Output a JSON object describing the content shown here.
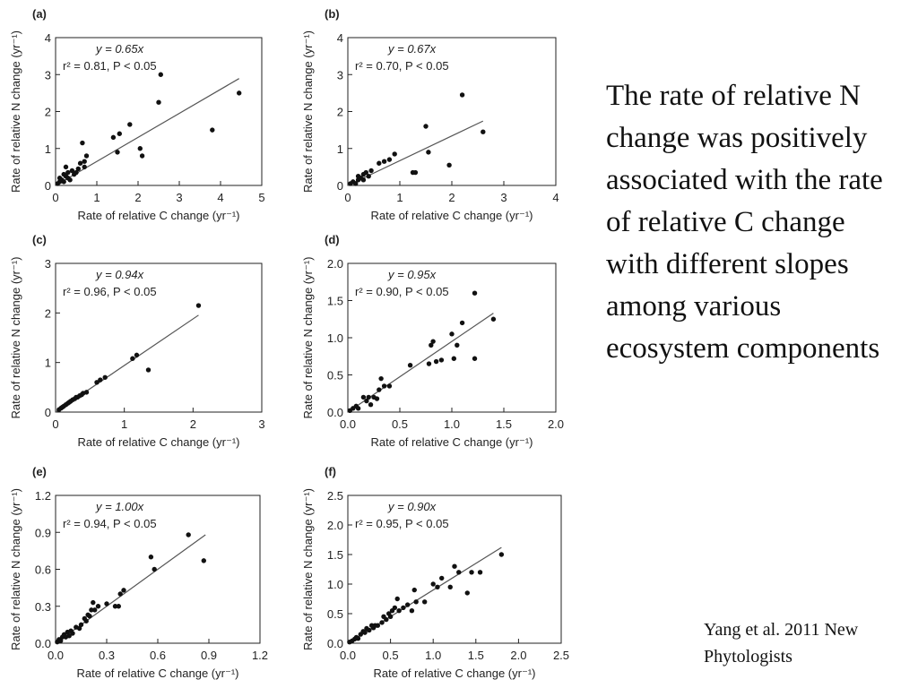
{
  "side_text": "The rate of relative N change was positively associated with the rate of relative C change with different slopes among various ecosystem components",
  "citation": "Yang et al. 2011 New Phytologists",
  "colors": {
    "points": "#111111",
    "fit_line": "#555555",
    "axes": "#222222"
  },
  "chart_data": [
    {
      "type": "scatter",
      "panel": "(a)",
      "xlabel": "Rate of relative C change (yr⁻¹)",
      "ylabel": "Rate of relative N change (yr⁻¹)",
      "xlim": [
        0,
        5
      ],
      "ylim": [
        0,
        4
      ],
      "xticks": [
        "0",
        "1",
        "2",
        "3",
        "4",
        "5"
      ],
      "yticks": [
        "0",
        "1",
        "2",
        "3",
        "4"
      ],
      "equation": "y = 0.65x",
      "stats": "r² = 0.81, P < 0.05",
      "fit": {
        "slope": 0.65,
        "x_range": [
          0,
          4.45
        ]
      },
      "points": [
        [
          0.05,
          0.05
        ],
        [
          0.1,
          0.1
        ],
        [
          0.1,
          0.2
        ],
        [
          0.15,
          0.15
        ],
        [
          0.2,
          0.1
        ],
        [
          0.2,
          0.3
        ],
        [
          0.25,
          0.25
        ],
        [
          0.25,
          0.5
        ],
        [
          0.3,
          0.35
        ],
        [
          0.3,
          0.2
        ],
        [
          0.35,
          0.15
        ],
        [
          0.4,
          0.4
        ],
        [
          0.45,
          0.3
        ],
        [
          0.5,
          0.35
        ],
        [
          0.55,
          0.45
        ],
        [
          0.6,
          0.6
        ],
        [
          0.65,
          1.15
        ],
        [
          0.7,
          0.5
        ],
        [
          0.75,
          0.8
        ],
        [
          0.7,
          0.65
        ],
        [
          1.4,
          1.3
        ],
        [
          1.5,
          0.9
        ],
        [
          1.55,
          1.4
        ],
        [
          1.8,
          1.65
        ],
        [
          2.05,
          1.0
        ],
        [
          2.1,
          0.8
        ],
        [
          2.5,
          2.25
        ],
        [
          2.55,
          3.0
        ],
        [
          3.8,
          1.5
        ],
        [
          4.45,
          2.5
        ]
      ]
    },
    {
      "type": "scatter",
      "panel": "(b)",
      "xlabel": "Rate of relative C change (yr⁻¹)",
      "ylabel": "Rate of relative N change (yr⁻¹)",
      "xlim": [
        0,
        4
      ],
      "ylim": [
        0,
        4
      ],
      "xticks": [
        "0",
        "1",
        "2",
        "3",
        "4"
      ],
      "yticks": [
        "0",
        "1",
        "2",
        "3",
        "4"
      ],
      "equation": "y = 0.67x",
      "stats": "r² = 0.70, P < 0.05",
      "fit": {
        "slope": 0.67,
        "x_range": [
          0,
          2.6
        ]
      },
      "points": [
        [
          0.05,
          0.05
        ],
        [
          0.1,
          0.1
        ],
        [
          0.15,
          0.05
        ],
        [
          0.2,
          0.15
        ],
        [
          0.2,
          0.25
        ],
        [
          0.25,
          0.2
        ],
        [
          0.3,
          0.3
        ],
        [
          0.3,
          0.15
        ],
        [
          0.35,
          0.35
        ],
        [
          0.4,
          0.25
        ],
        [
          0.45,
          0.4
        ],
        [
          0.6,
          0.6
        ],
        [
          0.7,
          0.65
        ],
        [
          0.8,
          0.7
        ],
        [
          0.9,
          0.85
        ],
        [
          1.25,
          0.35
        ],
        [
          1.3,
          0.35
        ],
        [
          1.5,
          1.6
        ],
        [
          1.55,
          0.9
        ],
        [
          1.95,
          0.55
        ],
        [
          2.2,
          2.45
        ],
        [
          2.6,
          1.45
        ]
      ]
    },
    {
      "type": "scatter",
      "panel": "(c)",
      "xlabel": "Rate of relative C change (yr⁻¹)",
      "ylabel": "Rate of relative N change (yr⁻¹)",
      "xlim": [
        0,
        3
      ],
      "ylim": [
        0,
        3
      ],
      "xticks": [
        "0",
        "1",
        "2",
        "3"
      ],
      "yticks": [
        "0",
        "1",
        "2",
        "3"
      ],
      "equation": "y = 0.94x",
      "stats": "r² = 0.96, P < 0.05",
      "fit": {
        "slope": 0.94,
        "x_range": [
          0,
          2.08
        ]
      },
      "points": [
        [
          0.05,
          0.05
        ],
        [
          0.08,
          0.08
        ],
        [
          0.1,
          0.1
        ],
        [
          0.12,
          0.12
        ],
        [
          0.15,
          0.15
        ],
        [
          0.18,
          0.18
        ],
        [
          0.2,
          0.2
        ],
        [
          0.22,
          0.22
        ],
        [
          0.25,
          0.25
        ],
        [
          0.28,
          0.27
        ],
        [
          0.3,
          0.3
        ],
        [
          0.32,
          0.3
        ],
        [
          0.35,
          0.33
        ],
        [
          0.38,
          0.35
        ],
        [
          0.4,
          0.38
        ],
        [
          0.45,
          0.4
        ],
        [
          0.6,
          0.6
        ],
        [
          0.65,
          0.65
        ],
        [
          0.72,
          0.7
        ],
        [
          1.12,
          1.08
        ],
        [
          1.18,
          1.15
        ],
        [
          1.35,
          0.85
        ],
        [
          2.08,
          2.15
        ]
      ]
    },
    {
      "type": "scatter",
      "panel": "(d)",
      "xlabel": "Rate of relative C change (yr⁻¹)",
      "ylabel": "Rate of relative N change (yr⁻¹)",
      "xlim": [
        0,
        2
      ],
      "ylim": [
        0,
        2
      ],
      "xticks": [
        "0.0",
        "0.5",
        "1.0",
        "1.5",
        "2.0"
      ],
      "yticks": [
        "0.0",
        "0.5",
        "1.0",
        "1.5",
        "2.0"
      ],
      "equation": "y = 0.95x",
      "stats": "r² = 0.90, P < 0.05",
      "fit": {
        "slope": 0.95,
        "x_range": [
          0,
          1.4
        ]
      },
      "points": [
        [
          0.02,
          0.02
        ],
        [
          0.05,
          0.05
        ],
        [
          0.08,
          0.08
        ],
        [
          0.1,
          0.05
        ],
        [
          0.15,
          0.2
        ],
        [
          0.18,
          0.15
        ],
        [
          0.2,
          0.2
        ],
        [
          0.22,
          0.1
        ],
        [
          0.25,
          0.2
        ],
        [
          0.28,
          0.18
        ],
        [
          0.3,
          0.3
        ],
        [
          0.32,
          0.45
        ],
        [
          0.35,
          0.35
        ],
        [
          0.4,
          0.35
        ],
        [
          0.6,
          0.63
        ],
        [
          0.78,
          0.65
        ],
        [
          0.8,
          0.9
        ],
        [
          0.82,
          0.95
        ],
        [
          0.85,
          0.68
        ],
        [
          0.9,
          0.7
        ],
        [
          1.0,
          1.05
        ],
        [
          1.02,
          0.72
        ],
        [
          1.05,
          0.9
        ],
        [
          1.1,
          1.2
        ],
        [
          1.22,
          0.72
        ],
        [
          1.22,
          1.6
        ],
        [
          1.4,
          1.25
        ]
      ]
    },
    {
      "type": "scatter",
      "panel": "(e)",
      "xlabel": "Rate of relative C change (yr⁻¹)",
      "ylabel": "Rate of relative N change (yr⁻¹)",
      "xlim": [
        0,
        1.2
      ],
      "ylim": [
        0,
        1.2
      ],
      "xticks": [
        "0.0",
        "0.3",
        "0.6",
        "0.9",
        "1.2"
      ],
      "yticks": [
        "0.0",
        "0.3",
        "0.6",
        "0.9",
        "1.2"
      ],
      "equation": "y = 1.00x",
      "stats": "r² = 0.94, P < 0.05",
      "fit": {
        "slope": 1.0,
        "x_range": [
          0,
          0.88
        ]
      },
      "points": [
        [
          0.01,
          0.01
        ],
        [
          0.02,
          0.03
        ],
        [
          0.03,
          0.02
        ],
        [
          0.04,
          0.05
        ],
        [
          0.05,
          0.07
        ],
        [
          0.06,
          0.05
        ],
        [
          0.07,
          0.09
        ],
        [
          0.08,
          0.06
        ],
        [
          0.09,
          0.1
        ],
        [
          0.1,
          0.08
        ],
        [
          0.12,
          0.13
        ],
        [
          0.14,
          0.12
        ],
        [
          0.15,
          0.15
        ],
        [
          0.17,
          0.2
        ],
        [
          0.18,
          0.18
        ],
        [
          0.19,
          0.23
        ],
        [
          0.2,
          0.22
        ],
        [
          0.21,
          0.27
        ],
        [
          0.22,
          0.33
        ],
        [
          0.23,
          0.27
        ],
        [
          0.25,
          0.3
        ],
        [
          0.3,
          0.32
        ],
        [
          0.35,
          0.3
        ],
        [
          0.37,
          0.3
        ],
        [
          0.38,
          0.4
        ],
        [
          0.4,
          0.43
        ],
        [
          0.56,
          0.7
        ],
        [
          0.58,
          0.6
        ],
        [
          0.78,
          0.88
        ],
        [
          0.87,
          0.67
        ]
      ]
    },
    {
      "type": "scatter",
      "panel": "(f)",
      "xlabel": "Rate of relative C change (yr⁻¹)",
      "ylabel": "Rate of relative N change (yr⁻¹)",
      "xlim": [
        0,
        2.5
      ],
      "ylim": [
        0,
        2.5
      ],
      "xticks": [
        "0.0",
        "0.5",
        "1.0",
        "1.5",
        "2.0",
        "2.5"
      ],
      "yticks": [
        "0.0",
        "0.5",
        "1.0",
        "1.5",
        "2.0",
        "2.5"
      ],
      "equation": "y = 0.90x",
      "stats": "r² = 0.95, P < 0.05",
      "fit": {
        "slope": 0.9,
        "x_range": [
          0,
          1.8
        ]
      },
      "points": [
        [
          0.02,
          0.02
        ],
        [
          0.05,
          0.04
        ],
        [
          0.08,
          0.07
        ],
        [
          0.1,
          0.1
        ],
        [
          0.12,
          0.08
        ],
        [
          0.15,
          0.15
        ],
        [
          0.18,
          0.2
        ],
        [
          0.2,
          0.18
        ],
        [
          0.22,
          0.25
        ],
        [
          0.25,
          0.22
        ],
        [
          0.28,
          0.3
        ],
        [
          0.3,
          0.26
        ],
        [
          0.32,
          0.3
        ],
        [
          0.35,
          0.3
        ],
        [
          0.4,
          0.35
        ],
        [
          0.42,
          0.45
        ],
        [
          0.45,
          0.4
        ],
        [
          0.48,
          0.5
        ],
        [
          0.5,
          0.45
        ],
        [
          0.52,
          0.55
        ],
        [
          0.55,
          0.6
        ],
        [
          0.58,
          0.75
        ],
        [
          0.6,
          0.55
        ],
        [
          0.65,
          0.6
        ],
        [
          0.7,
          0.65
        ],
        [
          0.75,
          0.55
        ],
        [
          0.78,
          0.9
        ],
        [
          0.8,
          0.7
        ],
        [
          0.9,
          0.7
        ],
        [
          1.0,
          1.0
        ],
        [
          1.05,
          0.95
        ],
        [
          1.1,
          1.1
        ],
        [
          1.2,
          0.95
        ],
        [
          1.25,
          1.3
        ],
        [
          1.3,
          1.2
        ],
        [
          1.4,
          0.85
        ],
        [
          1.45,
          1.2
        ],
        [
          1.55,
          1.2
        ],
        [
          1.8,
          1.5
        ]
      ]
    }
  ]
}
